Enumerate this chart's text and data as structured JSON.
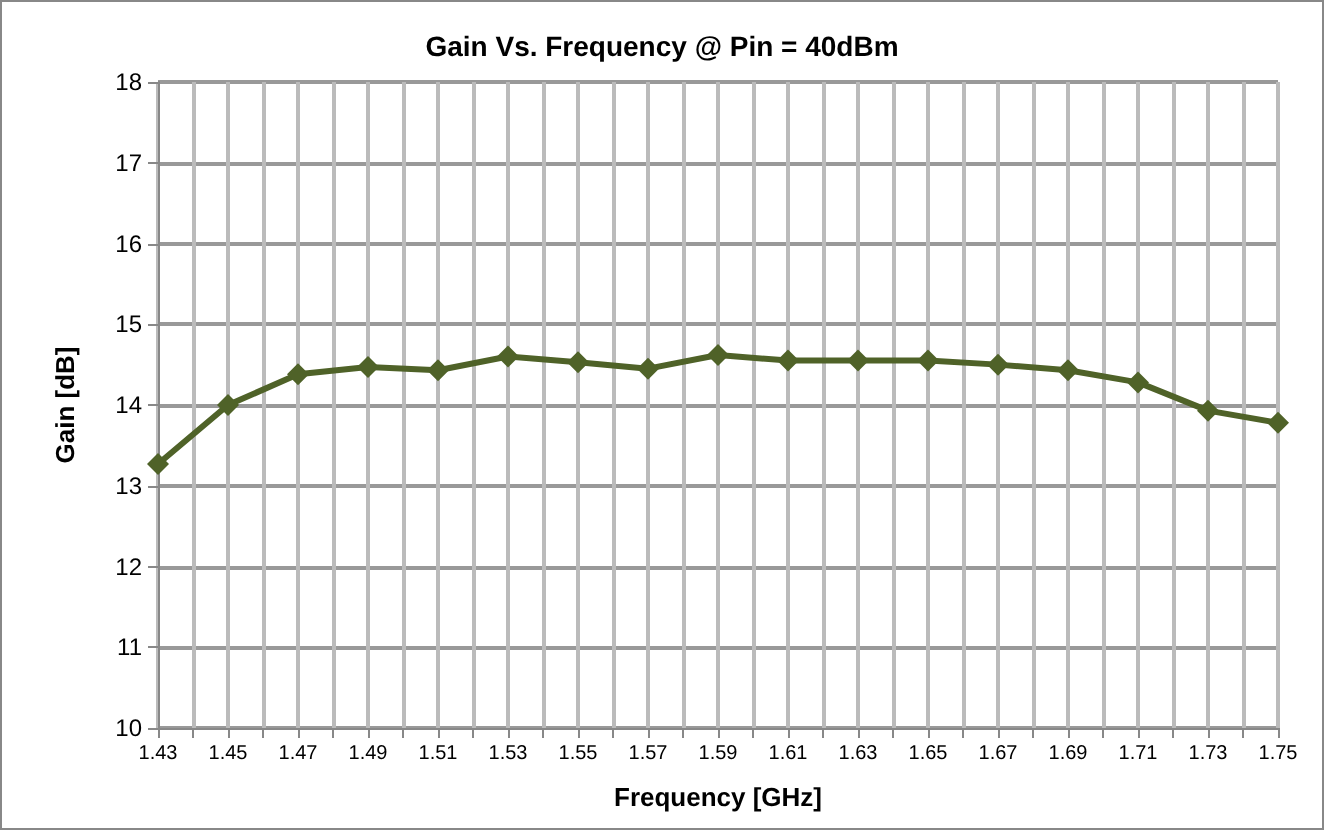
{
  "chart_data": {
    "type": "line",
    "title": "Gain Vs. Frequency @ Pin = 40dBm",
    "xlabel": "Frequency [GHz]",
    "ylabel": "Gain [dB]",
    "x": [
      1.43,
      1.45,
      1.47,
      1.49,
      1.51,
      1.53,
      1.55,
      1.57,
      1.59,
      1.61,
      1.63,
      1.65,
      1.67,
      1.69,
      1.71,
      1.73,
      1.75
    ],
    "series": [
      {
        "color": "#4f6228",
        "values": [
          13.27,
          14.0,
          14.38,
          14.47,
          14.43,
          14.6,
          14.53,
          14.45,
          14.62,
          14.55,
          14.55,
          14.55,
          14.5,
          14.43,
          14.28,
          13.93,
          13.78
        ]
      }
    ],
    "xlim": [
      1.43,
      1.75
    ],
    "xticks": [
      1.43,
      {
        "value": 1.44,
        "label": null
      },
      1.45,
      {
        "value": 1.46,
        "label": null
      },
      1.47,
      {
        "value": 1.48,
        "label": null
      },
      1.49,
      {
        "value": 1.5,
        "label": null
      },
      1.51,
      {
        "value": 1.52,
        "label": null
      },
      1.53,
      {
        "value": 1.54,
        "label": null
      },
      1.55,
      {
        "value": 1.56,
        "label": null
      },
      1.57,
      {
        "value": 1.58,
        "label": null
      },
      1.59,
      {
        "value": 1.6,
        "label": null
      },
      1.61,
      {
        "value": 1.62,
        "label": null
      },
      1.63,
      {
        "value": 1.64,
        "label": null
      },
      1.65,
      {
        "value": 1.66,
        "label": null
      },
      1.67,
      {
        "value": 1.68,
        "label": null
      },
      1.69,
      {
        "value": 1.7,
        "label": null
      },
      1.71,
      {
        "value": 1.72,
        "label": null
      },
      1.73,
      {
        "value": 1.74,
        "label": null
      },
      1.75
    ],
    "ylim": [
      10,
      18
    ],
    "yticks": [
      10,
      11,
      12,
      13,
      14,
      15,
      16,
      17,
      18
    ],
    "grid": true,
    "marker": "diamond",
    "line_style": "solid"
  }
}
